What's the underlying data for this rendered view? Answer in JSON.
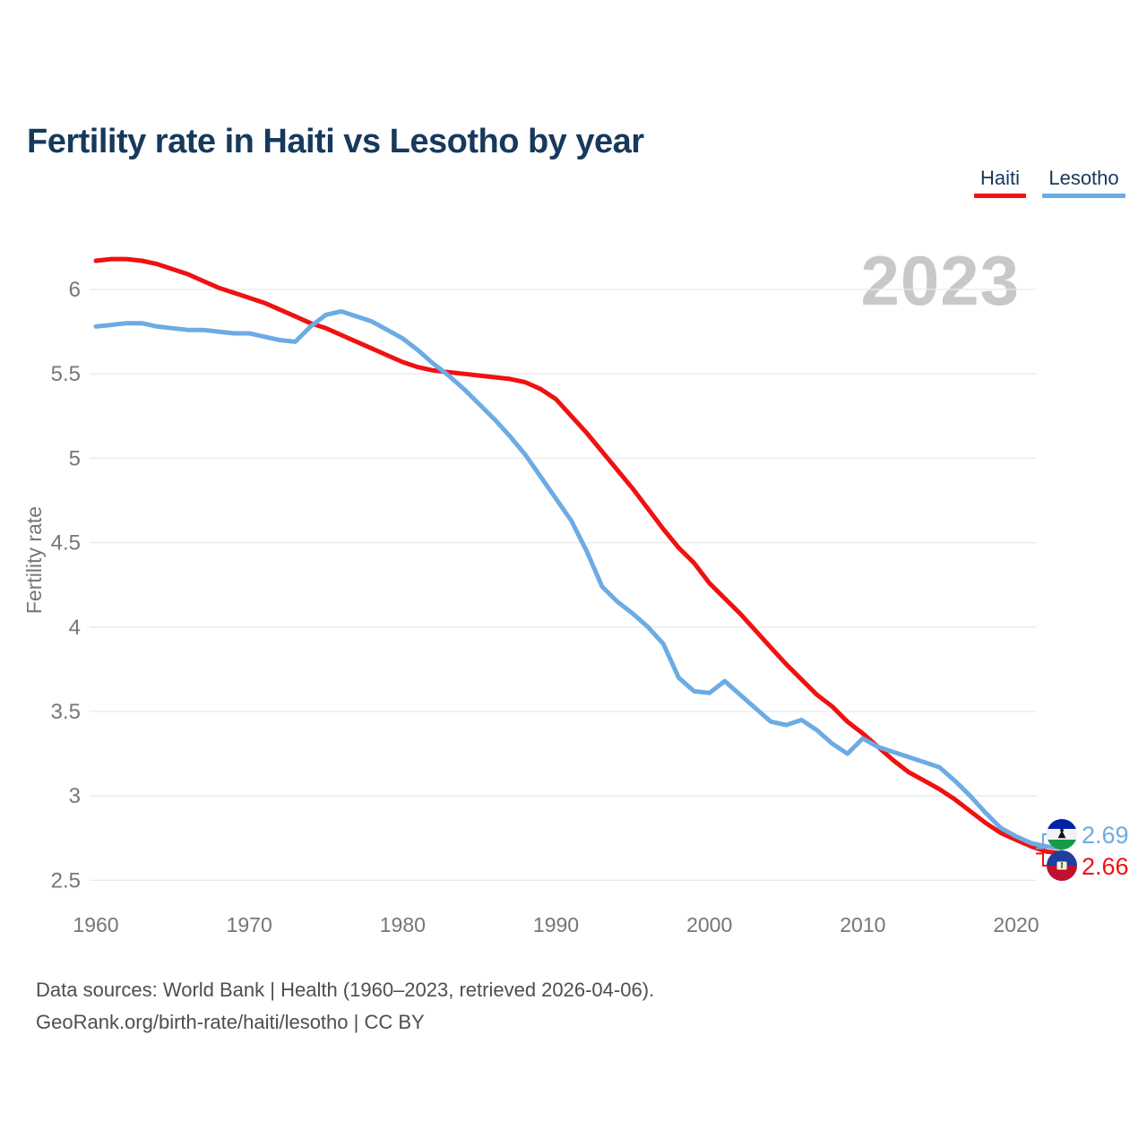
{
  "header": {
    "title": "Fertility rate in Haiti vs Lesotho by year"
  },
  "legend": {
    "items": [
      {
        "label": "Haiti",
        "color": "#f01111"
      },
      {
        "label": "Lesotho",
        "color": "#6cabe4"
      }
    ]
  },
  "watermark": "2023",
  "chart_data": {
    "type": "line",
    "title": "Fertility rate in Haiti vs Lesotho by year",
    "xlabel": "",
    "ylabel": "Fertility rate",
    "ylim": [
      2.5,
      6.0
    ],
    "yticks": [
      6,
      5.5,
      5,
      4.5,
      4,
      3.5,
      3,
      2.5
    ],
    "xticks": [
      1960,
      1970,
      1980,
      1990,
      2000,
      2010,
      2020
    ],
    "grid": "horizontal",
    "legend_position": "top-right",
    "x": [
      1960,
      1961,
      1962,
      1963,
      1964,
      1965,
      1966,
      1967,
      1968,
      1969,
      1970,
      1971,
      1972,
      1973,
      1974,
      1975,
      1976,
      1977,
      1978,
      1979,
      1980,
      1981,
      1982,
      1983,
      1984,
      1985,
      1986,
      1987,
      1988,
      1989,
      1990,
      1991,
      1992,
      1993,
      1994,
      1995,
      1996,
      1997,
      1998,
      1999,
      2000,
      2001,
      2002,
      2003,
      2004,
      2005,
      2006,
      2007,
      2008,
      2009,
      2010,
      2011,
      2012,
      2013,
      2014,
      2015,
      2016,
      2017,
      2018,
      2019,
      2020,
      2021,
      2022,
      2023
    ],
    "series": [
      {
        "name": "Haiti",
        "color": "#f01111",
        "values": [
          6.17,
          6.18,
          6.18,
          6.17,
          6.15,
          6.12,
          6.09,
          6.05,
          6.01,
          5.98,
          5.95,
          5.92,
          5.88,
          5.84,
          5.8,
          5.77,
          5.73,
          5.69,
          5.65,
          5.61,
          5.57,
          5.54,
          5.52,
          5.51,
          5.5,
          5.49,
          5.48,
          5.47,
          5.45,
          5.41,
          5.35,
          5.25,
          5.15,
          5.04,
          4.93,
          4.82,
          4.7,
          4.58,
          4.47,
          4.38,
          4.26,
          4.17,
          4.08,
          3.98,
          3.88,
          3.78,
          3.69,
          3.6,
          3.53,
          3.44,
          3.37,
          3.29,
          3.21,
          3.14,
          3.09,
          3.04,
          2.98,
          2.91,
          2.84,
          2.78,
          2.74,
          2.7,
          2.67,
          2.66
        ]
      },
      {
        "name": "Lesotho",
        "color": "#6cabe4",
        "values": [
          5.78,
          5.79,
          5.8,
          5.8,
          5.78,
          5.77,
          5.76,
          5.76,
          5.75,
          5.74,
          5.74,
          5.72,
          5.7,
          5.69,
          5.78,
          5.85,
          5.87,
          5.84,
          5.81,
          5.76,
          5.71,
          5.64,
          5.56,
          5.49,
          5.41,
          5.32,
          5.23,
          5.13,
          5.02,
          4.89,
          4.76,
          4.63,
          4.45,
          4.24,
          4.15,
          4.08,
          4.0,
          3.9,
          3.7,
          3.62,
          3.61,
          3.68,
          3.6,
          3.52,
          3.44,
          3.42,
          3.45,
          3.39,
          3.31,
          3.25,
          3.34,
          3.29,
          3.26,
          3.23,
          3.2,
          3.17,
          3.09,
          3.0,
          2.9,
          2.81,
          2.76,
          2.72,
          2.7,
          2.69
        ]
      }
    ]
  },
  "end_labels": [
    {
      "series": "Lesotho",
      "value": "2.69",
      "color": "#6cabe4"
    },
    {
      "series": "Haiti",
      "value": "2.66",
      "color": "#f01111"
    }
  ],
  "colors": {
    "title": "#17395c",
    "axis_text": "#767676",
    "gridline": "#e9e9e9",
    "watermark": "#c8c8c8",
    "footer_text": "#4e4e4e"
  },
  "footer": {
    "line1": "Data sources: World Bank | Health (1960–2023, retrieved 2026-04-06).",
    "line2": "GeoRank.org/birth-rate/haiti/lesotho | CC BY"
  }
}
